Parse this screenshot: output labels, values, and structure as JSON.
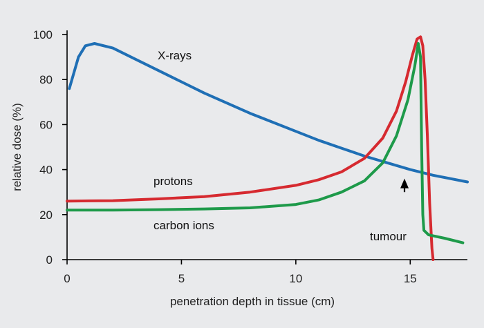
{
  "chart_data": {
    "type": "line",
    "xlabel": "penetration depth in tissue (cm)",
    "ylabel": "relative dose (%)",
    "xlim": [
      0,
      17.5
    ],
    "ylim": [
      0,
      100
    ],
    "xticks": [
      0,
      5,
      10,
      15
    ],
    "yticks": [
      0,
      20,
      40,
      60,
      80,
      100
    ],
    "grid": false,
    "series": [
      {
        "name": "X-rays",
        "color": "#1f6fb5",
        "points": [
          [
            0.1,
            76
          ],
          [
            0.5,
            90
          ],
          [
            0.8,
            95
          ],
          [
            1.2,
            96
          ],
          [
            2,
            94
          ],
          [
            3,
            89
          ],
          [
            4,
            84
          ],
          [
            5,
            79
          ],
          [
            6,
            74
          ],
          [
            7,
            69.5
          ],
          [
            8,
            65
          ],
          [
            9,
            61
          ],
          [
            10,
            57
          ],
          [
            11,
            53
          ],
          [
            12,
            49.5
          ],
          [
            13,
            46
          ],
          [
            14,
            43
          ],
          [
            15,
            40
          ],
          [
            16,
            37.5
          ],
          [
            17.5,
            34.5
          ]
        ]
      },
      {
        "name": "protons",
        "color": "#d62a30",
        "points": [
          [
            0,
            26
          ],
          [
            2,
            26.2
          ],
          [
            4,
            27
          ],
          [
            6,
            28
          ],
          [
            8,
            30
          ],
          [
            10,
            33
          ],
          [
            11,
            35.5
          ],
          [
            12,
            39
          ],
          [
            13,
            45
          ],
          [
            13.8,
            54
          ],
          [
            14.4,
            66
          ],
          [
            14.8,
            79
          ],
          [
            15.1,
            91
          ],
          [
            15.3,
            98
          ],
          [
            15.45,
            99
          ],
          [
            15.55,
            95
          ],
          [
            15.65,
            80
          ],
          [
            15.75,
            55
          ],
          [
            15.85,
            25
          ],
          [
            15.95,
            5
          ],
          [
            16.0,
            0
          ]
        ]
      },
      {
        "name": "carbon ions",
        "color": "#1e9a4a",
        "points": [
          [
            0,
            22
          ],
          [
            2,
            22
          ],
          [
            4,
            22.2
          ],
          [
            6,
            22.5
          ],
          [
            8,
            23
          ],
          [
            10,
            24.5
          ],
          [
            11,
            26.5
          ],
          [
            12,
            30
          ],
          [
            13,
            35
          ],
          [
            13.8,
            43
          ],
          [
            14.4,
            55
          ],
          [
            14.9,
            71
          ],
          [
            15.2,
            86
          ],
          [
            15.35,
            96
          ],
          [
            15.45,
            90
          ],
          [
            15.5,
            50
          ],
          [
            15.55,
            20
          ],
          [
            15.6,
            13
          ],
          [
            15.8,
            11
          ],
          [
            16.5,
            9.5
          ],
          [
            17.3,
            7.5
          ]
        ]
      }
    ],
    "annotations": [
      {
        "text": "tumour",
        "arrow_from": [
          14.75,
          30
        ],
        "arrow_to": [
          14.75,
          36
        ]
      }
    ]
  }
}
